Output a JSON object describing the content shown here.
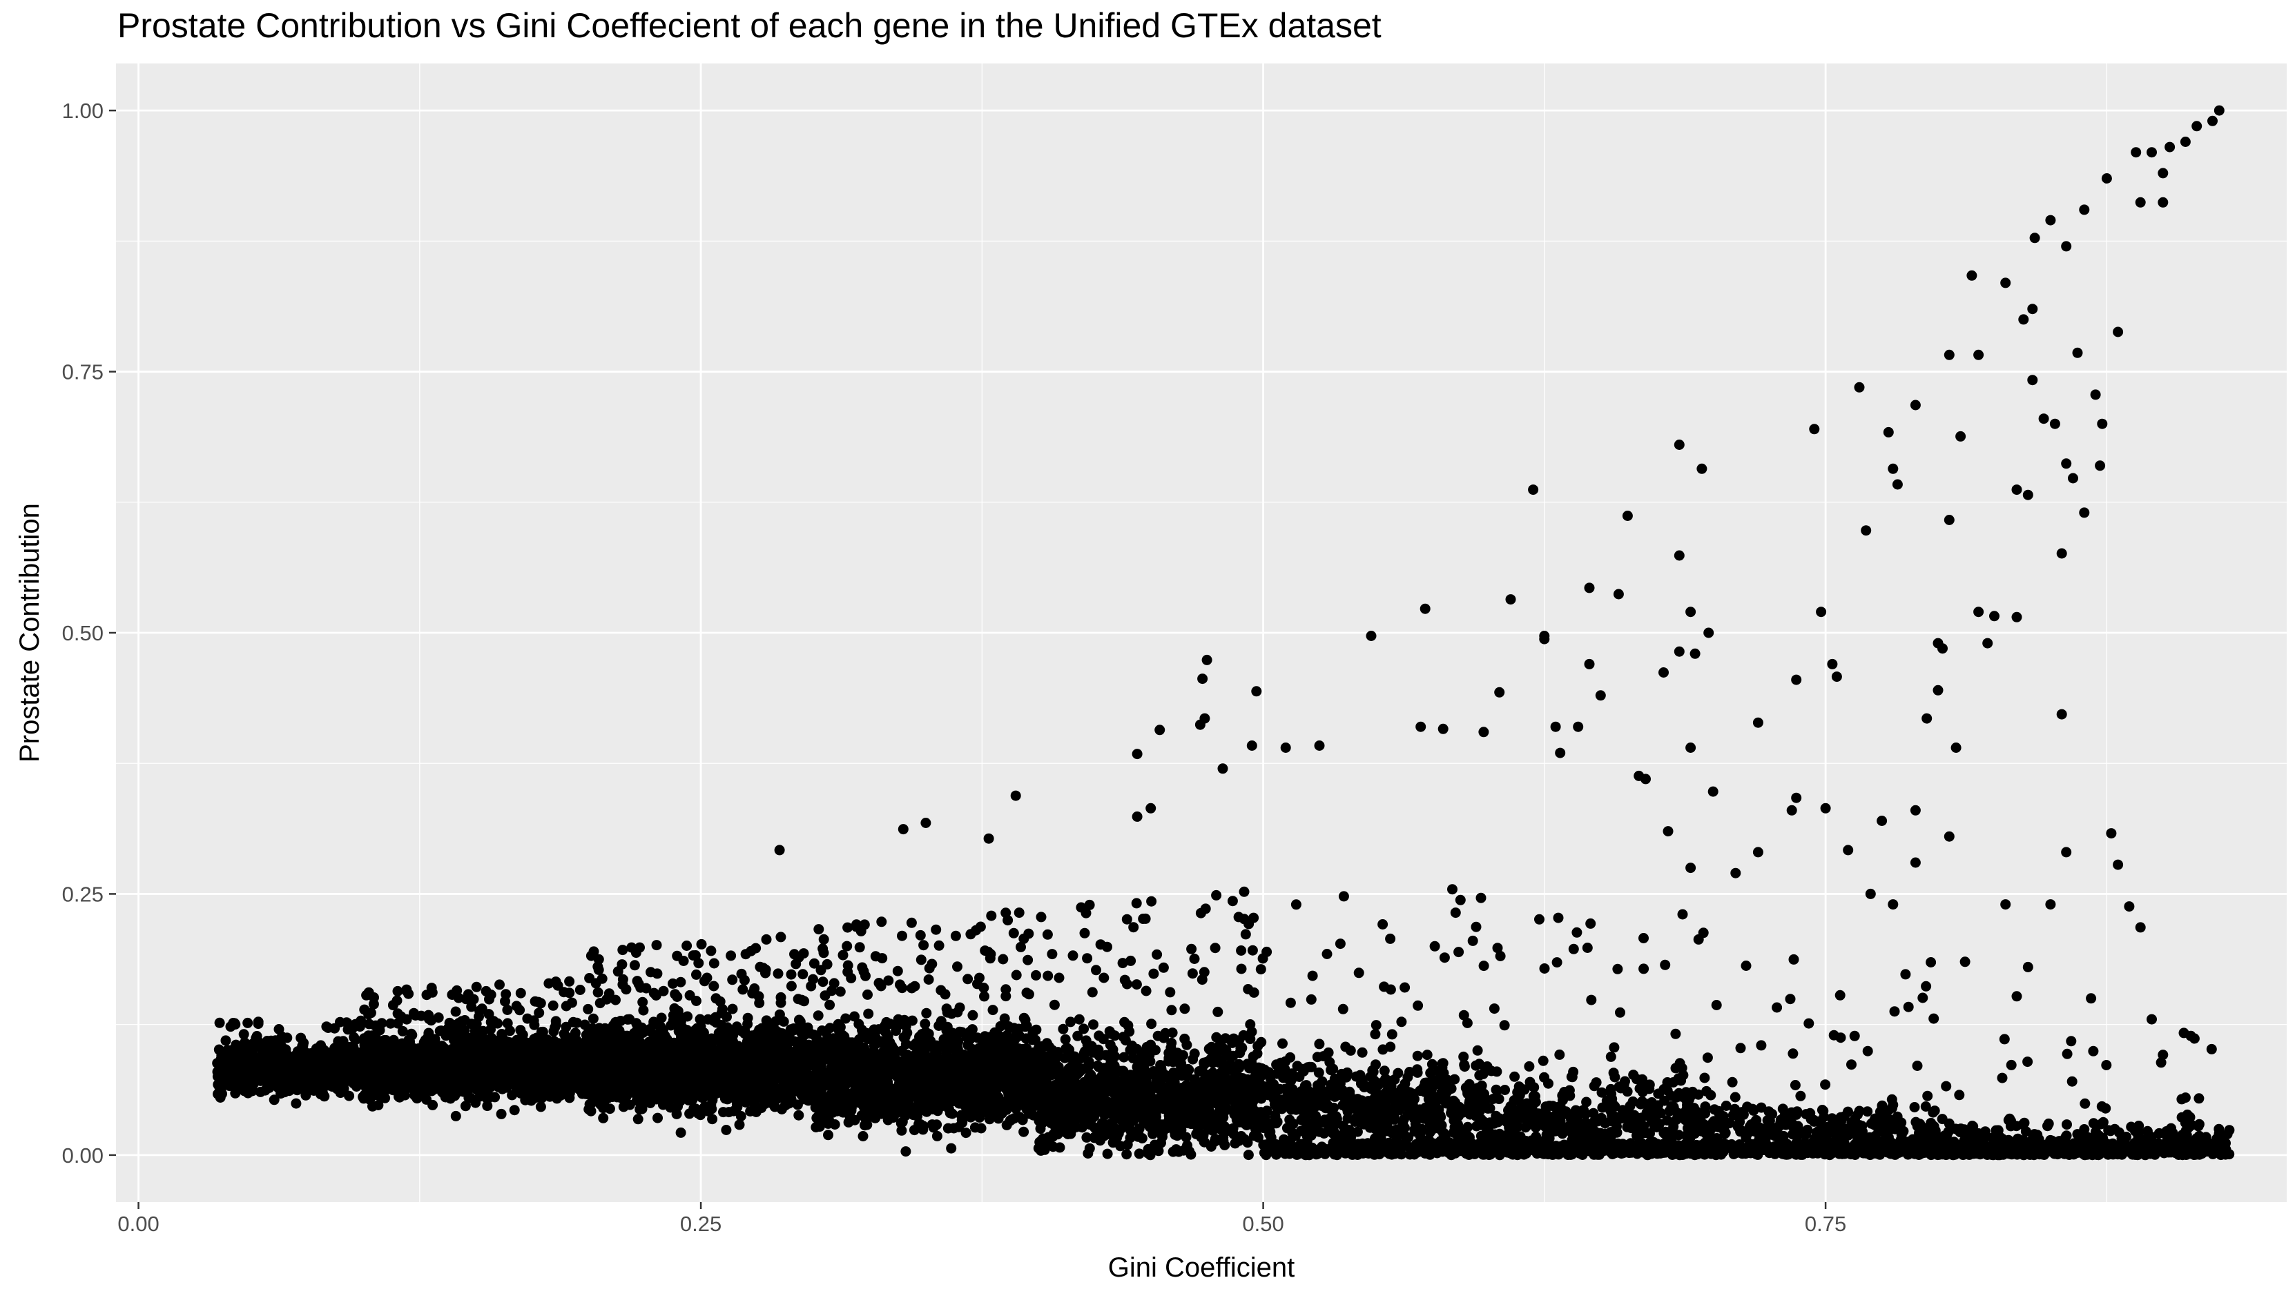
{
  "chart_data": {
    "type": "scatter",
    "title": "Prostate Contribution vs Gini Coeffecient of each gene in the Unified GTEx dataset",
    "xlabel": "Gini Coefficient",
    "ylabel": "Prostate Contribution",
    "xlim": [
      -0.01,
      0.955
    ],
    "ylim": [
      -0.045,
      1.045
    ],
    "xticks": [
      0.0,
      0.25,
      0.5,
      0.75
    ],
    "xtick_labels": [
      "0.00",
      "0.25",
      "0.50",
      "0.75"
    ],
    "yticks": [
      0.0,
      0.25,
      0.5,
      0.75,
      1.0
    ],
    "ytick_labels": [
      "0.00",
      "0.25",
      "0.50",
      "0.75",
      "1.00"
    ],
    "grid": true,
    "legend": "none",
    "colors": {
      "panel": "#ebebeb",
      "grid": "#ffffff",
      "point": "#000000",
      "text": "#4d4d4d"
    },
    "highlight_points": [
      {
        "x": 0.925,
        "y": 1.0
      },
      {
        "x": 0.922,
        "y": 0.99
      },
      {
        "x": 0.915,
        "y": 0.985
      },
      {
        "x": 0.91,
        "y": 0.97
      },
      {
        "x": 0.903,
        "y": 0.965
      },
      {
        "x": 0.895,
        "y": 0.96
      },
      {
        "x": 0.888,
        "y": 0.96
      },
      {
        "x": 0.9,
        "y": 0.94
      },
      {
        "x": 0.89,
        "y": 0.912
      },
      {
        "x": 0.9,
        "y": 0.912
      },
      {
        "x": 0.875,
        "y": 0.935
      },
      {
        "x": 0.865,
        "y": 0.905
      },
      {
        "x": 0.857,
        "y": 0.87
      },
      {
        "x": 0.85,
        "y": 0.895
      },
      {
        "x": 0.838,
        "y": 0.8
      },
      {
        "x": 0.842,
        "y": 0.81
      },
      {
        "x": 0.83,
        "y": 0.835
      },
      {
        "x": 0.815,
        "y": 0.842
      },
      {
        "x": 0.843,
        "y": 0.878
      },
      {
        "x": 0.88,
        "y": 0.788
      },
      {
        "x": 0.818,
        "y": 0.766
      },
      {
        "x": 0.805,
        "y": 0.766
      },
      {
        "x": 0.862,
        "y": 0.768
      },
      {
        "x": 0.842,
        "y": 0.742
      },
      {
        "x": 0.87,
        "y": 0.728
      },
      {
        "x": 0.765,
        "y": 0.735
      },
      {
        "x": 0.79,
        "y": 0.718
      },
      {
        "x": 0.81,
        "y": 0.688
      },
      {
        "x": 0.847,
        "y": 0.705
      },
      {
        "x": 0.852,
        "y": 0.7
      },
      {
        "x": 0.873,
        "y": 0.7
      },
      {
        "x": 0.778,
        "y": 0.692
      },
      {
        "x": 0.745,
        "y": 0.695
      },
      {
        "x": 0.685,
        "y": 0.68
      },
      {
        "x": 0.695,
        "y": 0.657
      },
      {
        "x": 0.62,
        "y": 0.637
      },
      {
        "x": 0.835,
        "y": 0.637
      },
      {
        "x": 0.84,
        "y": 0.632
      },
      {
        "x": 0.86,
        "y": 0.648
      },
      {
        "x": 0.857,
        "y": 0.662
      },
      {
        "x": 0.782,
        "y": 0.642
      },
      {
        "x": 0.78,
        "y": 0.657
      },
      {
        "x": 0.872,
        "y": 0.66
      },
      {
        "x": 0.662,
        "y": 0.612
      },
      {
        "x": 0.805,
        "y": 0.608
      },
      {
        "x": 0.865,
        "y": 0.615
      },
      {
        "x": 0.768,
        "y": 0.598
      },
      {
        "x": 0.685,
        "y": 0.574
      },
      {
        "x": 0.855,
        "y": 0.576
      },
      {
        "x": 0.572,
        "y": 0.523
      },
      {
        "x": 0.61,
        "y": 0.532
      },
      {
        "x": 0.645,
        "y": 0.543
      },
      {
        "x": 0.658,
        "y": 0.537
      },
      {
        "x": 0.748,
        "y": 0.52
      },
      {
        "x": 0.818,
        "y": 0.52
      },
      {
        "x": 0.825,
        "y": 0.516
      },
      {
        "x": 0.835,
        "y": 0.515
      },
      {
        "x": 0.69,
        "y": 0.52
      },
      {
        "x": 0.698,
        "y": 0.5
      },
      {
        "x": 0.548,
        "y": 0.497
      },
      {
        "x": 0.625,
        "y": 0.497
      },
      {
        "x": 0.625,
        "y": 0.494
      },
      {
        "x": 0.8,
        "y": 0.49
      },
      {
        "x": 0.802,
        "y": 0.485
      },
      {
        "x": 0.822,
        "y": 0.49
      },
      {
        "x": 0.692,
        "y": 0.48
      },
      {
        "x": 0.685,
        "y": 0.482
      },
      {
        "x": 0.475,
        "y": 0.474
      },
      {
        "x": 0.473,
        "y": 0.456
      },
      {
        "x": 0.497,
        "y": 0.444
      },
      {
        "x": 0.605,
        "y": 0.443
      },
      {
        "x": 0.645,
        "y": 0.47
      },
      {
        "x": 0.65,
        "y": 0.44
      },
      {
        "x": 0.678,
        "y": 0.462
      },
      {
        "x": 0.753,
        "y": 0.47
      },
      {
        "x": 0.755,
        "y": 0.458
      },
      {
        "x": 0.737,
        "y": 0.455
      },
      {
        "x": 0.8,
        "y": 0.445
      },
      {
        "x": 0.855,
        "y": 0.422
      },
      {
        "x": 0.64,
        "y": 0.41
      },
      {
        "x": 0.57,
        "y": 0.41
      },
      {
        "x": 0.58,
        "y": 0.408
      },
      {
        "x": 0.454,
        "y": 0.407
      },
      {
        "x": 0.474,
        "y": 0.418
      },
      {
        "x": 0.472,
        "y": 0.412
      },
      {
        "x": 0.72,
        "y": 0.414
      },
      {
        "x": 0.795,
        "y": 0.418
      },
      {
        "x": 0.51,
        "y": 0.39
      },
      {
        "x": 0.495,
        "y": 0.392
      },
      {
        "x": 0.525,
        "y": 0.392
      },
      {
        "x": 0.444,
        "y": 0.384
      },
      {
        "x": 0.482,
        "y": 0.37
      },
      {
        "x": 0.632,
        "y": 0.385
      },
      {
        "x": 0.598,
        "y": 0.405
      },
      {
        "x": 0.69,
        "y": 0.39
      },
      {
        "x": 0.808,
        "y": 0.39
      },
      {
        "x": 0.39,
        "y": 0.344
      },
      {
        "x": 0.444,
        "y": 0.324
      },
      {
        "x": 0.45,
        "y": 0.332
      },
      {
        "x": 0.34,
        "y": 0.312
      },
      {
        "x": 0.35,
        "y": 0.318
      },
      {
        "x": 0.285,
        "y": 0.292
      },
      {
        "x": 0.378,
        "y": 0.303
      },
      {
        "x": 0.63,
        "y": 0.41
      },
      {
        "x": 0.667,
        "y": 0.363
      },
      {
        "x": 0.67,
        "y": 0.36
      },
      {
        "x": 0.7,
        "y": 0.348
      },
      {
        "x": 0.737,
        "y": 0.342
      },
      {
        "x": 0.735,
        "y": 0.33
      },
      {
        "x": 0.75,
        "y": 0.332
      },
      {
        "x": 0.775,
        "y": 0.32
      },
      {
        "x": 0.79,
        "y": 0.33
      },
      {
        "x": 0.805,
        "y": 0.305
      },
      {
        "x": 0.877,
        "y": 0.308
      },
      {
        "x": 0.88,
        "y": 0.278
      },
      {
        "x": 0.857,
        "y": 0.29
      },
      {
        "x": 0.885,
        "y": 0.238
      },
      {
        "x": 0.89,
        "y": 0.218
      },
      {
        "x": 0.83,
        "y": 0.24
      },
      {
        "x": 0.85,
        "y": 0.24
      },
      {
        "x": 0.895,
        "y": 0.13
      },
      {
        "x": 0.9,
        "y": 0.096
      },
      {
        "x": 0.91,
        "y": 0.055
      },
      {
        "x": 0.76,
        "y": 0.292
      },
      {
        "x": 0.72,
        "y": 0.29
      },
      {
        "x": 0.68,
        "y": 0.31
      },
      {
        "x": 0.71,
        "y": 0.27
      },
      {
        "x": 0.69,
        "y": 0.275
      },
      {
        "x": 0.79,
        "y": 0.28
      },
      {
        "x": 0.77,
        "y": 0.25
      },
      {
        "x": 0.84,
        "y": 0.18
      },
      {
        "x": 0.868,
        "y": 0.15
      },
      {
        "x": 0.835,
        "y": 0.152
      },
      {
        "x": 0.812,
        "y": 0.185
      },
      {
        "x": 0.78,
        "y": 0.24
      }
    ],
    "series": [
      {
        "type": "scatter-cloud",
        "description_bands": [
          {
            "x_from": 0.035,
            "x_to": 0.1,
            "y_center": 0.082,
            "y_spread": 0.022,
            "count": 650
          },
          {
            "x_from": 0.1,
            "x_to": 0.2,
            "y_center": 0.085,
            "y_spread": 0.03,
            "count": 1500
          },
          {
            "x_from": 0.2,
            "x_to": 0.3,
            "y_center": 0.085,
            "y_spread": 0.04,
            "count": 1600
          },
          {
            "x_from": 0.3,
            "x_to": 0.4,
            "y_center": 0.075,
            "y_spread": 0.045,
            "count": 1400
          },
          {
            "x_from": 0.4,
            "x_to": 0.5,
            "y_center": 0.058,
            "y_spread": 0.05,
            "count": 1100
          },
          {
            "x_from": 0.5,
            "x_to": 0.6,
            "y_center": 0.045,
            "y_spread": 0.05,
            "count": 800
          },
          {
            "x_from": 0.6,
            "x_to": 0.7,
            "y_center": 0.03,
            "y_spread": 0.045,
            "count": 650
          },
          {
            "x_from": 0.7,
            "x_to": 0.8,
            "y_center": 0.018,
            "y_spread": 0.035,
            "count": 500
          },
          {
            "x_from": 0.8,
            "x_to": 0.93,
            "y_center": 0.008,
            "y_spread": 0.02,
            "count": 550
          }
        ]
      }
    ]
  }
}
